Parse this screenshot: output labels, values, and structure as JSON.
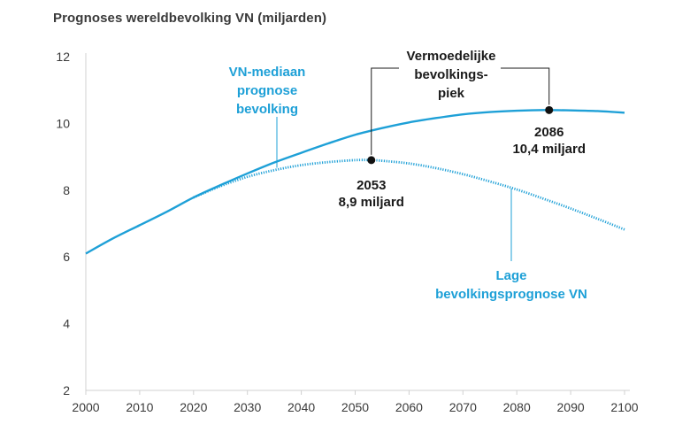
{
  "title": "Prognoses wereldbevolking VN (miljarden)",
  "chart_data": {
    "type": "line",
    "title": "Prognoses wereldbevolking VN (miljarden)",
    "xlim": [
      2000,
      2100
    ],
    "ylim": [
      2,
      12
    ],
    "x_ticks": [
      "2000",
      "2010",
      "2020",
      "2030",
      "2040",
      "2050",
      "2060",
      "2070",
      "2080",
      "2090",
      "2100"
    ],
    "y_ticks": [
      "2",
      "4",
      "6",
      "8",
      "10",
      "12"
    ],
    "grid": false,
    "colors": {
      "line": "#1ea0d7",
      "axis": "#d0d0d0",
      "text": "#3a3a3a",
      "annotation": "#1a1a1a"
    },
    "series": [
      {
        "id": "median",
        "style": "solid",
        "x": [
          2000,
          2005,
          2010,
          2015,
          2020,
          2025,
          2030,
          2035,
          2040,
          2045,
          2050,
          2055,
          2060,
          2065,
          2070,
          2075,
          2080,
          2085,
          2090,
          2095,
          2100
        ],
        "y": [
          6.1,
          6.55,
          6.95,
          7.35,
          7.78,
          8.15,
          8.5,
          8.83,
          9.12,
          9.4,
          9.66,
          9.86,
          10.03,
          10.16,
          10.27,
          10.34,
          10.38,
          10.4,
          10.39,
          10.37,
          10.32
        ]
      },
      {
        "id": "low",
        "style": "dotted",
        "x": [
          2020,
          2025,
          2030,
          2035,
          2040,
          2045,
          2050,
          2053,
          2055,
          2060,
          2065,
          2070,
          2075,
          2080,
          2085,
          2090,
          2095,
          2100
        ],
        "y": [
          7.78,
          8.12,
          8.4,
          8.6,
          8.75,
          8.84,
          8.9,
          8.9,
          8.88,
          8.8,
          8.66,
          8.48,
          8.26,
          8.02,
          7.74,
          7.45,
          7.14,
          6.82
        ]
      }
    ],
    "annotations": {
      "median_label": "VN-mediaan\nprognose\nbevolking",
      "low_label": "Lage\nbevolkingsprognose VN",
      "peak_label": "Vermoedelijke\nbevolkings-\npiek",
      "point_low": {
        "x": 2053,
        "y": 8.9,
        "year": "2053",
        "value": "8,9 miljard"
      },
      "point_median": {
        "x": 2086,
        "y": 10.4,
        "year": "2086",
        "value": "10,4 miljard"
      }
    }
  }
}
